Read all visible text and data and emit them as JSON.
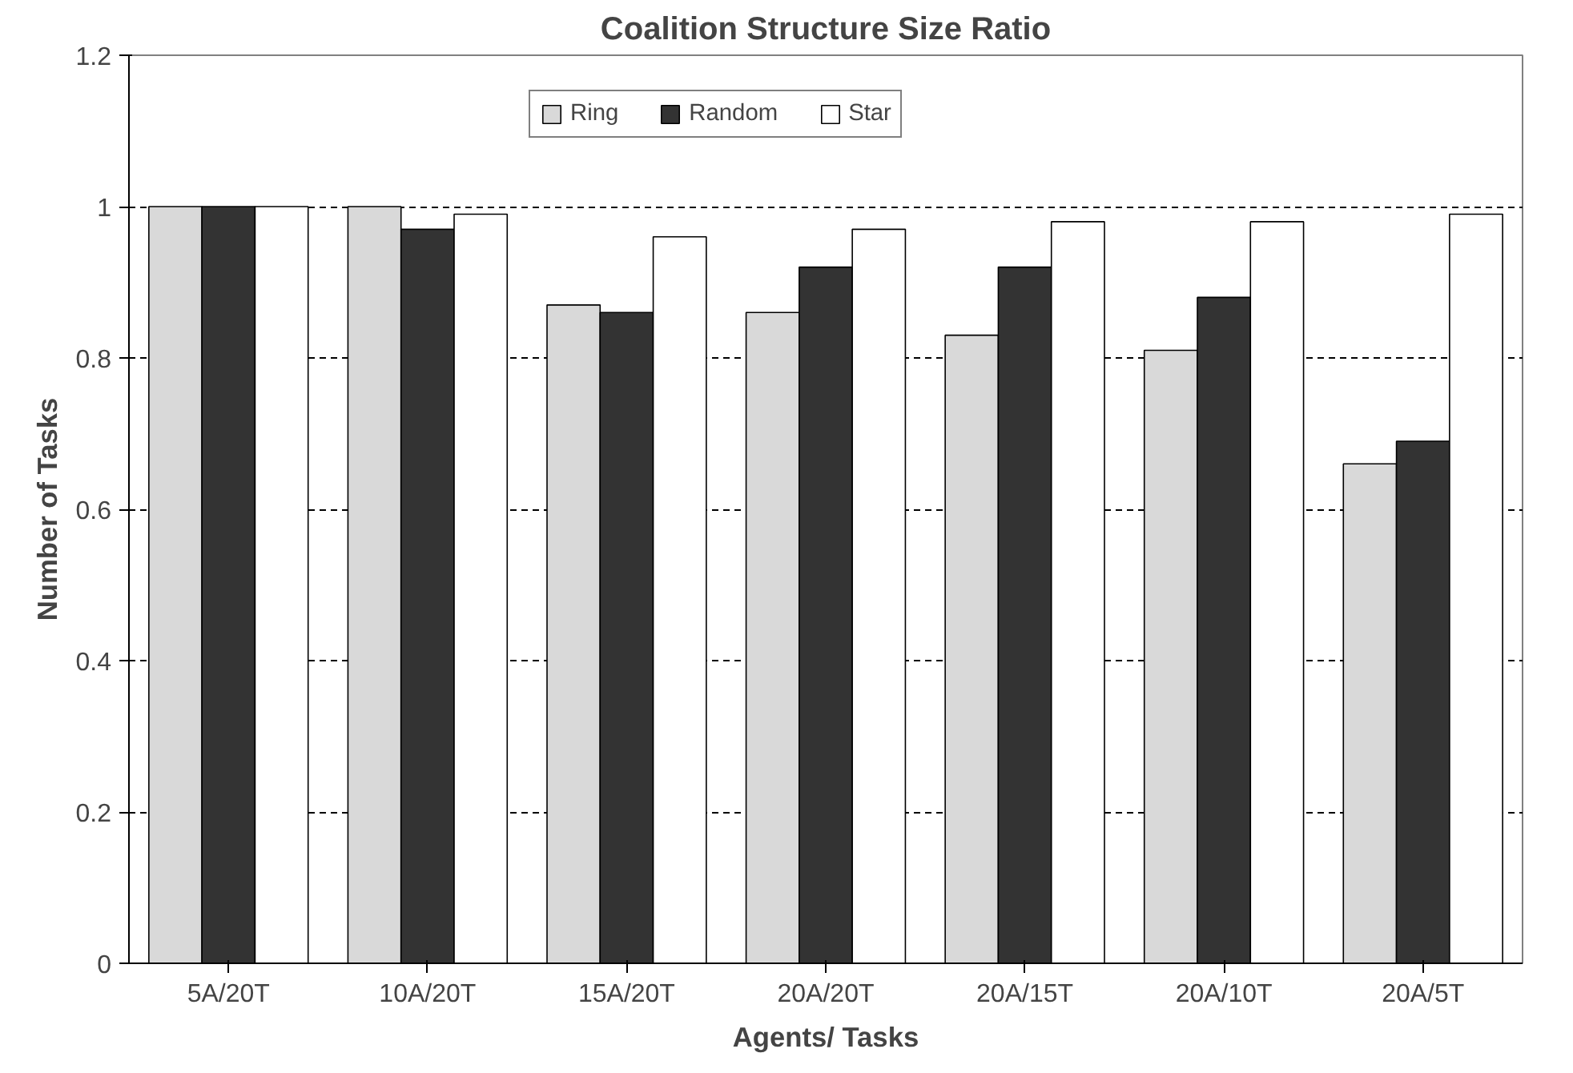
{
  "chart_data": {
    "type": "bar",
    "title": "Coalition Structure Size Ratio",
    "xlabel": "Agents/ Tasks",
    "ylabel": "Number of Tasks",
    "categories": [
      "5A/20T",
      "10A/20T",
      "15A/20T",
      "20A/20T",
      "20A/15T",
      "20A/10T",
      "20A/5T"
    ],
    "series": [
      {
        "name": "Ring",
        "color": "#d9d9d9",
        "values": [
          1,
          1,
          0.87,
          0.86,
          0.83,
          0.81,
          0.66
        ]
      },
      {
        "name": "Random",
        "color": "#333333",
        "values": [
          1,
          0.97,
          0.86,
          0.92,
          0.92,
          0.88,
          0.69
        ]
      },
      {
        "name": "Star",
        "color": "#ffffff",
        "values": [
          1,
          0.99,
          0.96,
          0.97,
          0.98,
          0.98,
          0.99
        ]
      }
    ],
    "ylim": [
      0,
      1.2
    ],
    "yticks": [
      0,
      0.2,
      0.4,
      0.6,
      0.8,
      1,
      1.2
    ],
    "grid": "y",
    "legend": "top"
  }
}
